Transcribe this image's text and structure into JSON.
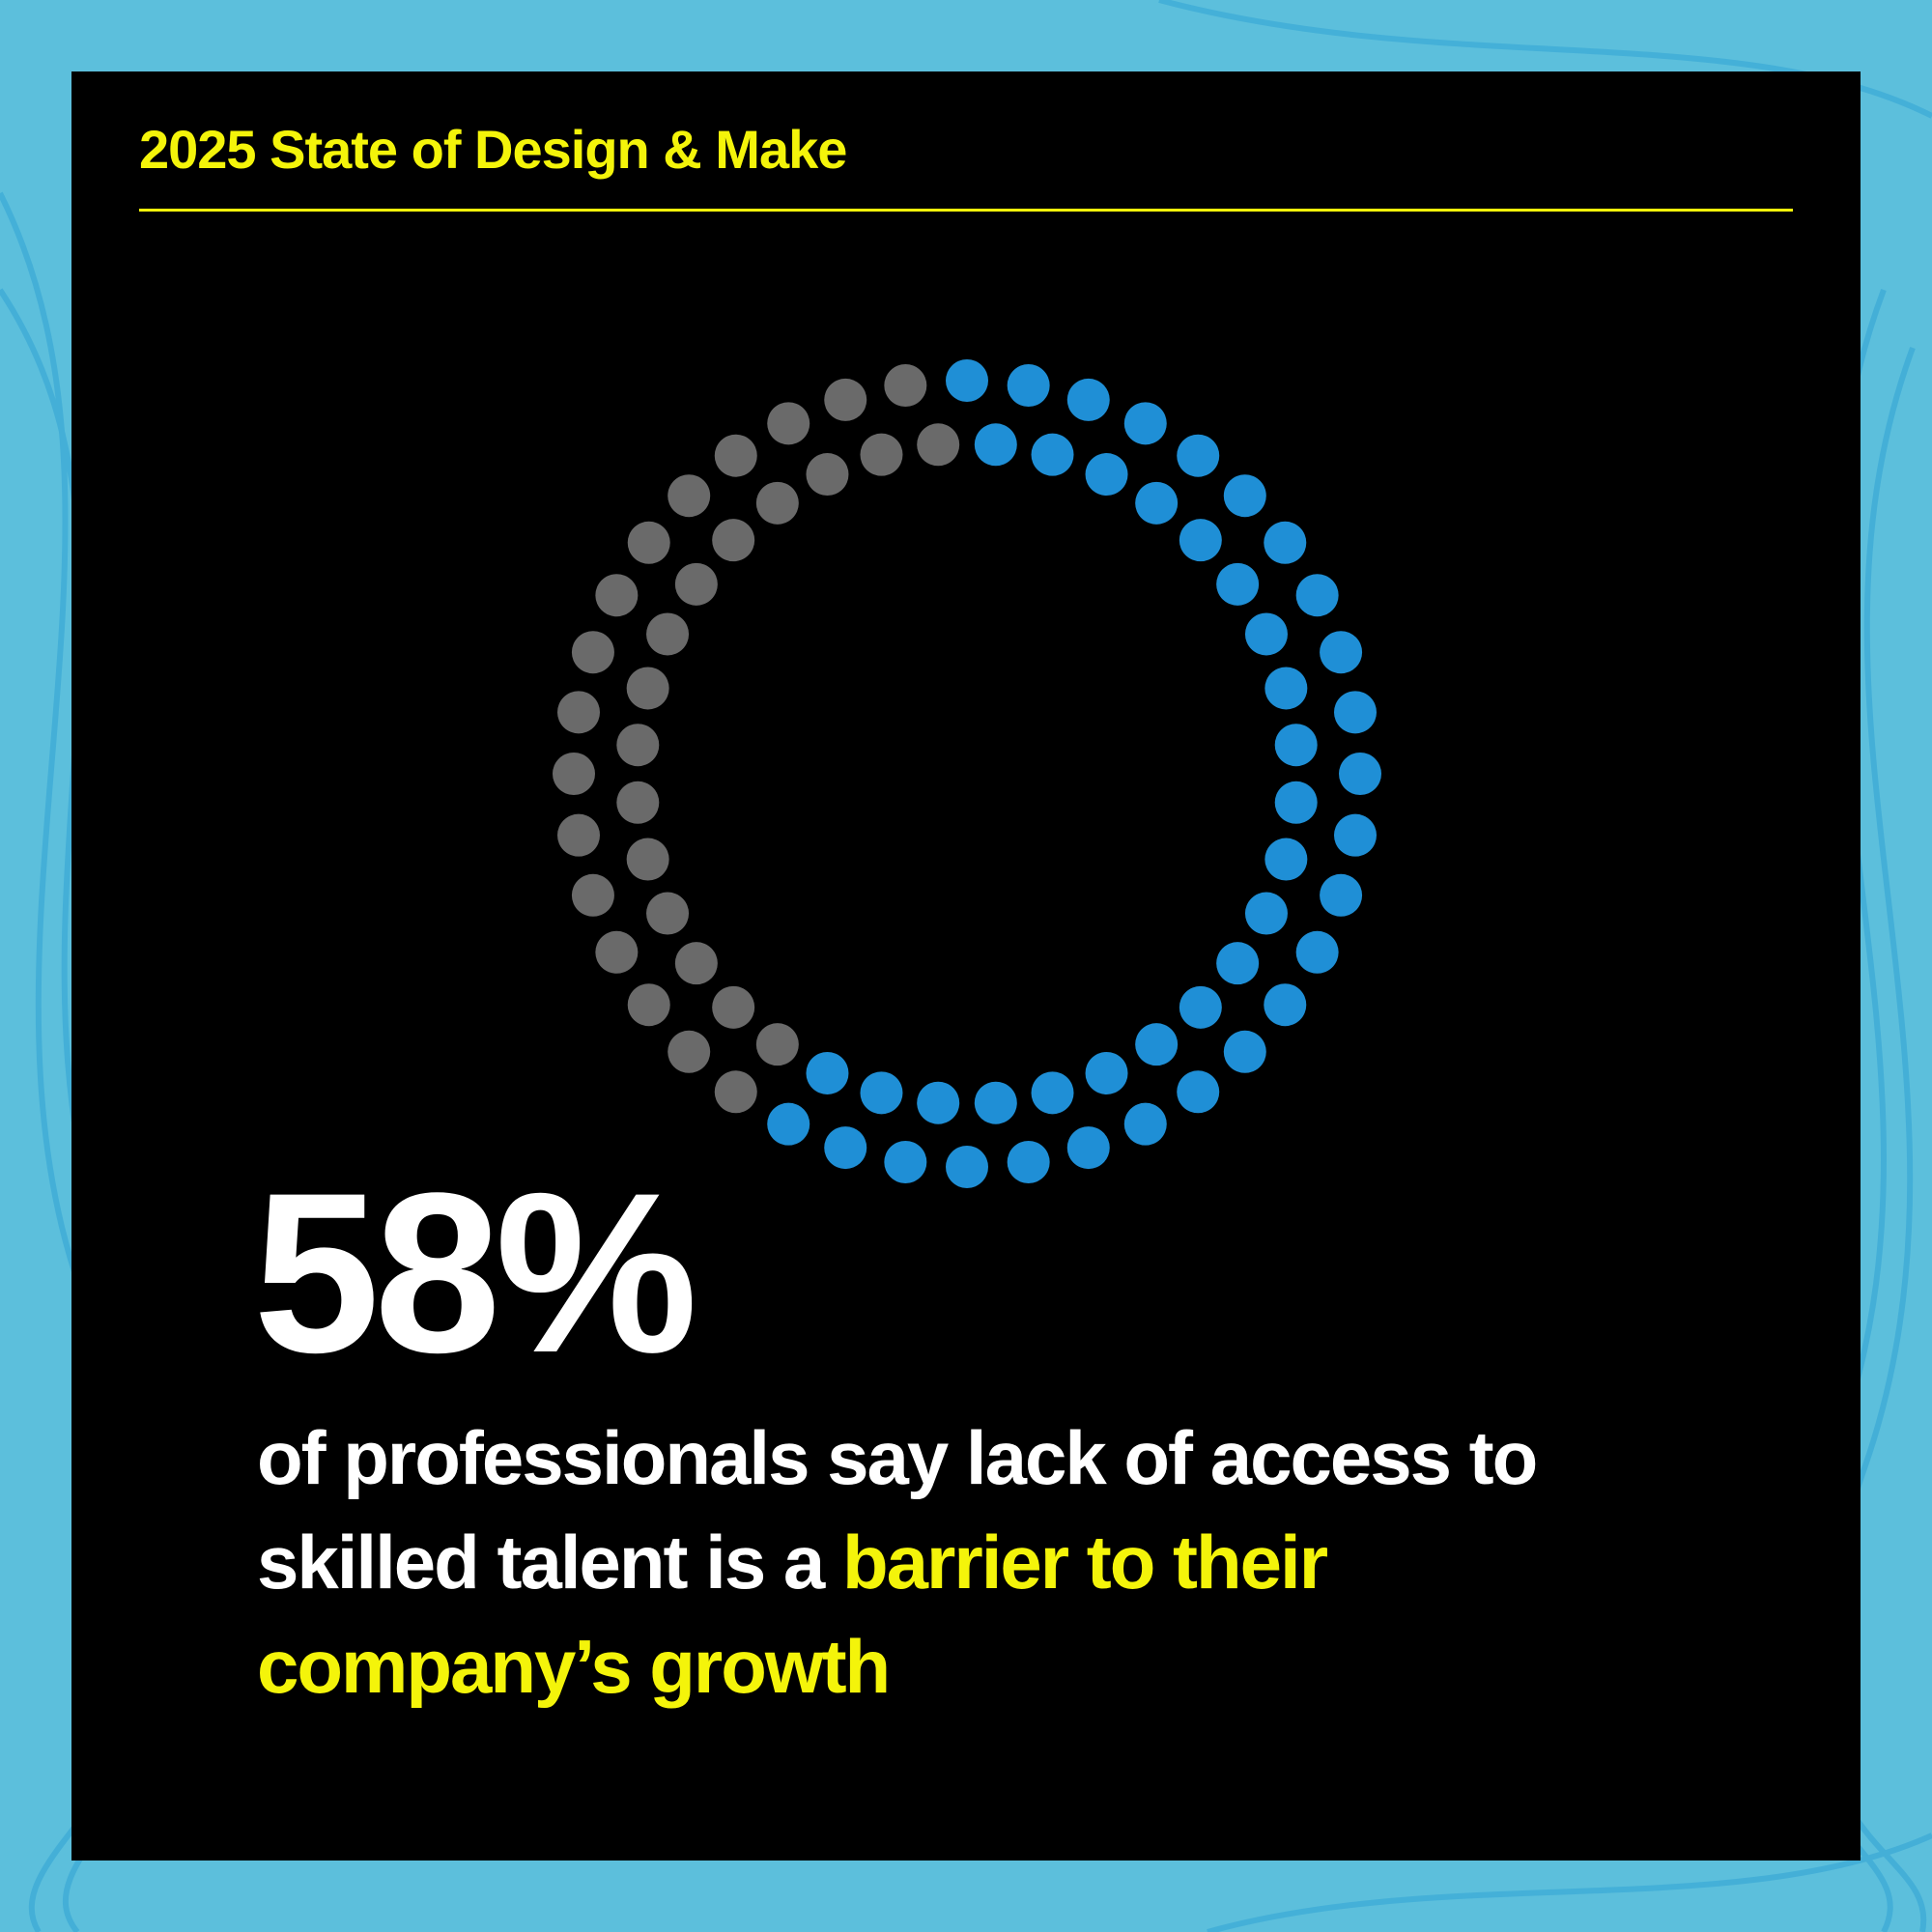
{
  "chart_data": {
    "type": "dot-ring",
    "title": "2025 State of Design & Make",
    "values": [
      58
    ],
    "value_labels": [
      "58%"
    ],
    "ylim": [
      0,
      100
    ],
    "color": "#1f8fd6",
    "rest_color": "#6a6a6a",
    "title_color": "#f4f40a",
    "caption": "of professionals say lack of access to skilled talent is a",
    "highlight": "barrier to their company’s growth"
  }
}
